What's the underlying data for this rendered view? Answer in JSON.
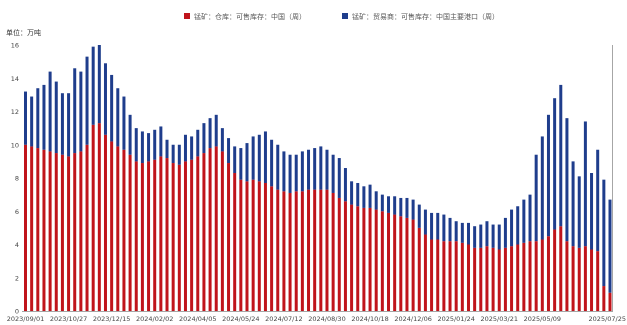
{
  "chart_data": {
    "type": "bar",
    "stacked": true,
    "ylabel": "单位：万吨",
    "ylim": [
      0,
      16
    ],
    "y_ticks": [
      0,
      2,
      4,
      6,
      8,
      10,
      12,
      14,
      16
    ],
    "grid": false,
    "legend": "top-center",
    "x_tick_labels": [
      "2023/09/01",
      "2023/10/27",
      "2023/12/15",
      "2024/02/02",
      "2024/04/05",
      "2024/05/24",
      "2024/07/12",
      "2024/08/30",
      "2024/10/18",
      "2024/12/06",
      "2025/01/24",
      "2025/03/21",
      "2025/05/09",
      "2025/07/25"
    ],
    "series": [
      {
        "name": "锰矿：仓库：可售库存：中国（周）",
        "color": "#c0141b",
        "values": [
          10.0,
          9.9,
          9.8,
          9.7,
          9.6,
          9.5,
          9.4,
          9.3,
          9.5,
          9.6,
          10.0,
          11.2,
          11.3,
          10.6,
          10.2,
          9.9,
          9.7,
          9.4,
          9.0,
          8.9,
          9.0,
          9.1,
          9.3,
          9.2,
          8.9,
          8.8,
          9.0,
          9.1,
          9.3,
          9.5,
          9.8,
          9.9,
          9.6,
          8.9,
          8.3,
          7.9,
          7.8,
          7.9,
          7.8,
          7.7,
          7.5,
          7.3,
          7.2,
          7.1,
          7.2,
          7.2,
          7.3,
          7.3,
          7.3,
          7.3,
          7.1,
          6.8,
          6.6,
          6.4,
          6.3,
          6.2,
          6.2,
          6.1,
          6.0,
          5.9,
          5.8,
          5.7,
          5.6,
          5.5,
          5.0,
          4.6,
          4.3,
          4.3,
          4.2,
          4.2,
          4.2,
          4.1,
          4.0,
          3.8,
          3.8,
          3.9,
          3.8,
          3.7,
          3.8,
          3.9,
          4.0,
          4.1,
          4.2,
          4.2,
          4.3,
          4.5,
          4.9,
          5.1,
          4.2,
          3.9,
          3.8,
          3.9,
          3.7,
          3.6,
          1.5,
          1.1
        ]
      },
      {
        "name": "锰矿：贸易商：可售库存：中国主要港口（周）",
        "color": "#1f3d8c",
        "values": [
          3.2,
          3.0,
          3.6,
          3.9,
          4.8,
          4.3,
          3.7,
          3.8,
          5.1,
          4.8,
          5.3,
          4.7,
          4.7,
          4.3,
          4.0,
          3.5,
          3.2,
          2.4,
          2.0,
          1.9,
          1.7,
          1.8,
          1.8,
          1.1,
          1.1,
          1.2,
          1.6,
          1.4,
          1.6,
          1.8,
          1.8,
          1.9,
          1.4,
          1.5,
          1.6,
          1.9,
          2.3,
          2.6,
          2.8,
          3.1,
          2.8,
          2.7,
          2.4,
          2.3,
          2.2,
          2.4,
          2.4,
          2.5,
          2.6,
          2.4,
          2.3,
          2.4,
          2.0,
          1.4,
          1.4,
          1.3,
          1.4,
          1.1,
          1.0,
          1.0,
          1.1,
          1.1,
          1.2,
          1.2,
          1.4,
          1.5,
          1.6,
          1.6,
          1.6,
          1.4,
          1.2,
          1.2,
          1.3,
          1.3,
          1.4,
          1.5,
          1.4,
          1.5,
          1.8,
          2.2,
          2.3,
          2.6,
          2.8,
          5.2,
          6.2,
          7.3,
          7.9,
          8.5,
          7.4,
          5.1,
          4.3,
          7.5,
          4.6,
          6.1,
          6.4,
          5.6
        ]
      }
    ]
  }
}
